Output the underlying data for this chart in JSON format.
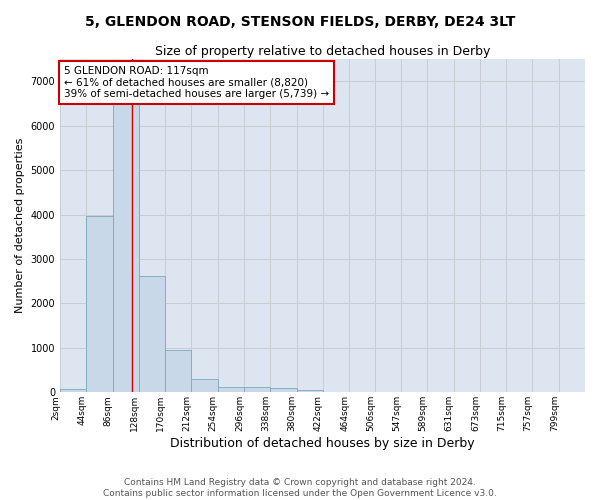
{
  "title": "5, GLENDON ROAD, STENSON FIELDS, DERBY, DE24 3LT",
  "subtitle": "Size of property relative to detached houses in Derby",
  "xlabel": "Distribution of detached houses by size in Derby",
  "ylabel": "Number of detached properties",
  "bin_edges": [
    2,
    44,
    86,
    128,
    170,
    212,
    254,
    296,
    338,
    380,
    422,
    464,
    506,
    547,
    589,
    631,
    673,
    715,
    757,
    799,
    841
  ],
  "bar_heights": [
    80,
    3980,
    6600,
    2620,
    950,
    310,
    120,
    120,
    90,
    60,
    0,
    0,
    0,
    0,
    0,
    0,
    0,
    0,
    0,
    0
  ],
  "bar_color": "#c8d8e8",
  "bar_edge_color": "#7aaabb",
  "grid_color": "#c8cdd4",
  "background_color": "#dde6f0",
  "property_size": 117,
  "vline_color": "#cc0000",
  "annotation_text": "5 GLENDON ROAD: 117sqm\n← 61% of detached houses are smaller (8,820)\n39% of semi-detached houses are larger (5,739) →",
  "annotation_box_color": "#ffffff",
  "annotation_box_edge_color": "#cc0000",
  "footer_text": "Contains HM Land Registry data © Crown copyright and database right 2024.\nContains public sector information licensed under the Open Government Licence v3.0.",
  "ylim": [
    0,
    7500
  ],
  "yticks": [
    0,
    1000,
    2000,
    3000,
    4000,
    5000,
    6000,
    7000
  ],
  "title_fontsize": 10,
  "subtitle_fontsize": 9,
  "xlabel_fontsize": 9,
  "ylabel_fontsize": 8,
  "tick_fontsize": 6.5,
  "footer_fontsize": 6.5,
  "annotation_fontsize": 7.5
}
